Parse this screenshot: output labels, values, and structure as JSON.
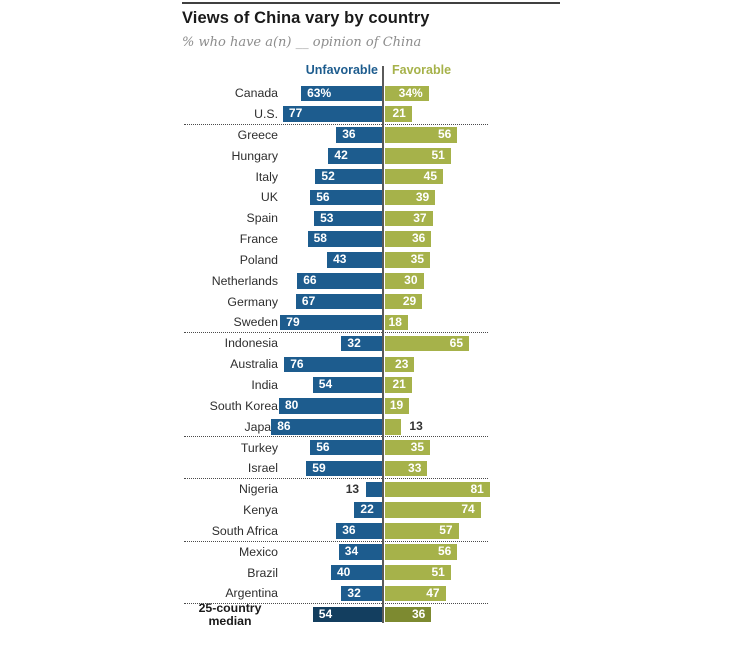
{
  "title": "Views of China vary by country",
  "subtitle": "% who have a(n) __ opinion of China",
  "legend": {
    "unfavorable": "Unfavorable",
    "favorable": "Favorable"
  },
  "colors": {
    "unfavorable": "#1d5c8e",
    "favorable": "#a6b24a",
    "unfavorable_median": "#133e5f",
    "favorable_median": "#7d8a30",
    "axis_line": "#5a5a5a",
    "outside_value_text": "#333333",
    "inside_value_text": "#ffffff"
  },
  "chart_data": {
    "type": "bar",
    "orientation": "diverging-horizontal",
    "title": "Views of China vary by country",
    "subtitle": "% who have a(n) __ opinion of China",
    "legend_position": "top-center",
    "axis_center_value": 0,
    "value_range_each_side": [
      0,
      100
    ],
    "series": [
      {
        "name": "Unfavorable",
        "color": "#1d5c8e"
      },
      {
        "name": "Favorable",
        "color": "#a6b24a"
      }
    ],
    "rows": [
      {
        "country": "Canada",
        "unfavorable": 63,
        "favorable": 34,
        "unfavorable_label": "63%",
        "favorable_label": "34%"
      },
      {
        "country": "U.S.",
        "unfavorable": 77,
        "favorable": 21
      },
      {
        "country": "Greece",
        "unfavorable": 36,
        "favorable": 56
      },
      {
        "country": "Hungary",
        "unfavorable": 42,
        "favorable": 51
      },
      {
        "country": "Italy",
        "unfavorable": 52,
        "favorable": 45
      },
      {
        "country": "UK",
        "unfavorable": 56,
        "favorable": 39
      },
      {
        "country": "Spain",
        "unfavorable": 53,
        "favorable": 37
      },
      {
        "country": "France",
        "unfavorable": 58,
        "favorable": 36
      },
      {
        "country": "Poland",
        "unfavorable": 43,
        "favorable": 35
      },
      {
        "country": "Netherlands",
        "unfavorable": 66,
        "favorable": 30
      },
      {
        "country": "Germany",
        "unfavorable": 67,
        "favorable": 29
      },
      {
        "country": "Sweden",
        "unfavorable": 79,
        "favorable": 18
      },
      {
        "country": "Indonesia",
        "unfavorable": 32,
        "favorable": 65
      },
      {
        "country": "Australia",
        "unfavorable": 76,
        "favorable": 23
      },
      {
        "country": "India",
        "unfavorable": 54,
        "favorable": 21
      },
      {
        "country": "South Korea",
        "unfavorable": 80,
        "favorable": 19
      },
      {
        "country": "Japan",
        "unfavorable": 86,
        "favorable": 13,
        "favorable_label_outside": true
      },
      {
        "country": "Turkey",
        "unfavorable": 56,
        "favorable": 35
      },
      {
        "country": "Israel",
        "unfavorable": 59,
        "favorable": 33
      },
      {
        "country": "Nigeria",
        "unfavorable": 13,
        "favorable": 81,
        "unfavorable_label_outside": true
      },
      {
        "country": "Kenya",
        "unfavorable": 22,
        "favorable": 74
      },
      {
        "country": "South Africa",
        "unfavorable": 36,
        "favorable": 57
      },
      {
        "country": "Mexico",
        "unfavorable": 34,
        "favorable": 56
      },
      {
        "country": "Brazil",
        "unfavorable": 40,
        "favorable": 51
      },
      {
        "country": "Argentina",
        "unfavorable": 32,
        "favorable": 47
      },
      {
        "country": "25-country median",
        "unfavorable": 54,
        "favorable": 36,
        "is_median": true
      }
    ],
    "separator_after_indices": [
      1,
      11,
      16,
      18,
      21,
      24
    ]
  }
}
